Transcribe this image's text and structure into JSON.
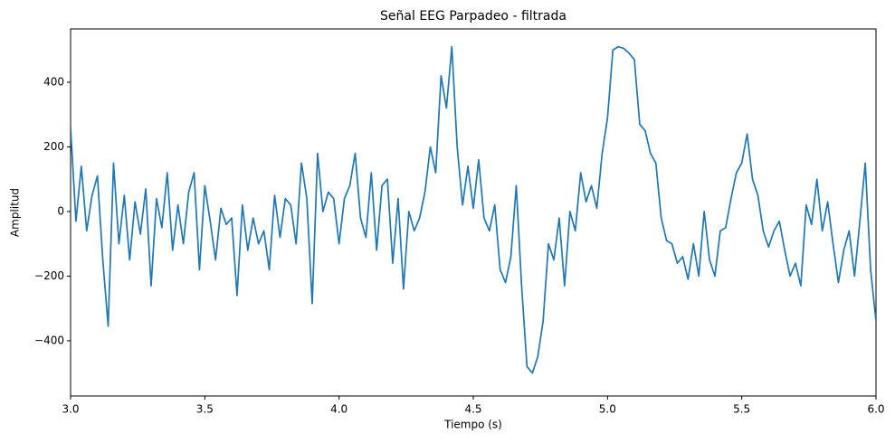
{
  "chart_data": {
    "type": "line",
    "title": "Señal EEG Parpadeo - filtrada",
    "xlabel": "Tiempo (s)",
    "ylabel": "Amplitud",
    "color": "#1f77b4",
    "x": [
      3.0,
      3.02,
      3.04,
      3.06,
      3.08,
      3.1,
      3.12,
      3.14,
      3.16,
      3.18,
      3.2,
      3.22,
      3.24,
      3.26,
      3.28,
      3.3,
      3.32,
      3.34,
      3.36,
      3.38,
      3.4,
      3.42,
      3.44,
      3.46,
      3.48,
      3.5,
      3.52,
      3.54,
      3.56,
      3.58,
      3.6,
      3.62,
      3.64,
      3.66,
      3.68,
      3.7,
      3.72,
      3.74,
      3.76,
      3.78,
      3.8,
      3.82,
      3.84,
      3.86,
      3.88,
      3.9,
      3.92,
      3.94,
      3.96,
      3.98,
      4.0,
      4.02,
      4.04,
      4.06,
      4.08,
      4.1,
      4.12,
      4.14,
      4.16,
      4.18,
      4.2,
      4.22,
      4.24,
      4.26,
      4.28,
      4.3,
      4.32,
      4.34,
      4.36,
      4.38,
      4.4,
      4.42,
      4.44,
      4.46,
      4.48,
      4.5,
      4.52,
      4.54,
      4.56,
      4.58,
      4.6,
      4.62,
      4.64,
      4.66,
      4.68,
      4.7,
      4.72,
      4.74,
      4.76,
      4.78,
      4.8,
      4.82,
      4.84,
      4.86,
      4.88,
      4.9,
      4.92,
      4.94,
      4.96,
      4.98,
      5.0,
      5.02,
      5.04,
      5.06,
      5.08,
      5.1,
      5.12,
      5.14,
      5.16,
      5.18,
      5.2,
      5.22,
      5.24,
      5.26,
      5.28,
      5.3,
      5.32,
      5.34,
      5.36,
      5.38,
      5.4,
      5.42,
      5.44,
      5.46,
      5.48,
      5.5,
      5.52,
      5.54,
      5.56,
      5.58,
      5.6,
      5.62,
      5.64,
      5.66,
      5.68,
      5.7,
      5.72,
      5.74,
      5.76,
      5.78,
      5.8,
      5.82,
      5.84,
      5.86,
      5.88,
      5.9,
      5.92,
      5.94,
      5.96,
      5.98,
      6.0
    ],
    "values": [
      260,
      -30,
      140,
      -60,
      50,
      110,
      -150,
      -355,
      150,
      -100,
      50,
      -150,
      30,
      -70,
      70,
      -230,
      40,
      -50,
      120,
      -120,
      20,
      -100,
      60,
      120,
      -180,
      80,
      -30,
      -150,
      10,
      -40,
      -20,
      -260,
      20,
      -120,
      -20,
      -100,
      -60,
      -180,
      50,
      -80,
      40,
      20,
      -100,
      150,
      40,
      -285,
      180,
      0,
      60,
      40,
      -100,
      40,
      80,
      180,
      -20,
      -80,
      120,
      -120,
      80,
      100,
      -160,
      40,
      -240,
      0,
      -60,
      -20,
      60,
      200,
      120,
      420,
      320,
      510,
      200,
      20,
      140,
      10,
      160,
      -20,
      -60,
      20,
      -180,
      -220,
      -140,
      80,
      -230,
      -480,
      -500,
      -450,
      -340,
      -100,
      -150,
      -20,
      -230,
      0,
      -60,
      120,
      30,
      80,
      10,
      180,
      290,
      500,
      510,
      505,
      490,
      470,
      270,
      250,
      180,
      150,
      -20,
      -90,
      -100,
      -160,
      -140,
      -210,
      -100,
      -200,
      0,
      -150,
      -200,
      -60,
      -50,
      40,
      120,
      150,
      240,
      100,
      50,
      -60,
      -110,
      -60,
      -30,
      -120,
      -200,
      -160,
      -230,
      20,
      -40,
      100,
      -60,
      30,
      -100,
      -220,
      -120,
      -60,
      -200,
      -30,
      150,
      -180,
      -340
    ],
    "xlim": [
      3,
      6
    ],
    "xticks": [
      {
        "value": 3,
        "label": "3.0"
      },
      3.5,
      {
        "value": 4,
        "label": "4.0"
      },
      4.5,
      {
        "value": 5,
        "label": "5.0"
      },
      5.5,
      {
        "value": 6,
        "label": "6.0"
      }
    ],
    "ylim": [
      -571,
      565
    ],
    "yticks": [
      {
        "value": -400,
        "label": "−400"
      },
      {
        "value": -200,
        "label": "−200"
      },
      0,
      200,
      400
    ],
    "grid": false
  }
}
